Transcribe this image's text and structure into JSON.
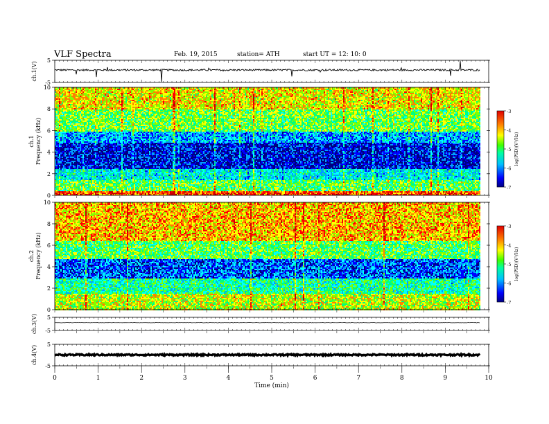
{
  "header": {
    "title": "VLF  Spectra",
    "date": "Feb. 19, 2015",
    "station": "station= ATH",
    "start": "start  UT  =   12: 10: 0"
  },
  "chart_data": [
    {
      "type": "line",
      "panel": "ch1-waveform",
      "ylabel": "ch.1(V)",
      "ylim": [
        -5,
        5
      ],
      "yticks": [
        "5",
        "-5"
      ],
      "xlim": [
        0,
        10
      ],
      "x_end": 9.8,
      "baseline": 0.6,
      "noise": 0.4,
      "spikes": [
        -4.8,
        4.8
      ],
      "line_color": "#000000"
    },
    {
      "type": "heatmap",
      "panel": "ch1-spectrogram",
      "ylabel": "ch.1\nFrequency  (kHz)",
      "ylim": [
        0,
        10
      ],
      "yticks": [
        "0",
        "2",
        "4",
        "6",
        "8",
        "10"
      ],
      "xlim": [
        0,
        10
      ],
      "x_end": 9.8,
      "colorbar": {
        "label": "log(PSD)(V²/Hz)",
        "range": [
          -7,
          -3
        ],
        "ticks": [
          "-3",
          "-4",
          "-5",
          "-6",
          "-7"
        ]
      },
      "profile_note": "logPSD vs frequency band",
      "profile": [
        {
          "f": [
            0,
            0.5
          ],
          "v": -3.8
        },
        {
          "f": [
            0.5,
            1.5
          ],
          "v": -5.0
        },
        {
          "f": [
            1.5,
            2.5
          ],
          "v": -5.6
        },
        {
          "f": [
            2.5,
            5.0
          ],
          "v": -6.5
        },
        {
          "f": [
            5.0,
            6.0
          ],
          "v": -5.9
        },
        {
          "f": [
            6.0,
            8.0
          ],
          "v": -4.9
        },
        {
          "f": [
            8.0,
            10.0
          ],
          "v": -4.4
        }
      ]
    },
    {
      "type": "heatmap",
      "panel": "ch2-spectrogram",
      "ylabel": "ch.2\nFrequency  (kHz)",
      "ylim": [
        0,
        10
      ],
      "yticks": [
        "0",
        "2",
        "4",
        "6",
        "8",
        "10"
      ],
      "xlim": [
        0,
        10
      ],
      "x_end": 9.8,
      "colorbar": {
        "label": "log(PSD)(V²/Hz)",
        "range": [
          -7,
          -3
        ],
        "ticks": [
          "-3",
          "-4",
          "-5",
          "-6",
          "-7"
        ]
      },
      "profile": [
        {
          "f": [
            0,
            1.5
          ],
          "v": -4.6
        },
        {
          "f": [
            1.5,
            3.0
          ],
          "v": -5.3
        },
        {
          "f": [
            3.0,
            4.8
          ],
          "v": -6.2
        },
        {
          "f": [
            4.8,
            6.5
          ],
          "v": -5.0
        },
        {
          "f": [
            6.5,
            10.0
          ],
          "v": -4.2
        }
      ]
    },
    {
      "type": "line",
      "panel": "ch3-waveform",
      "ylabel": "ch.3(V)",
      "ylim": [
        -5,
        5
      ],
      "yticks": [
        "5",
        "-5"
      ],
      "xlim": [
        0,
        10
      ],
      "x_end": 9.8,
      "baseline": 0.9,
      "noise": 0.12,
      "line_color": "#000000"
    },
    {
      "type": "line",
      "panel": "ch4-waveform",
      "ylabel": "ch.4(V)",
      "ylim": [
        -5,
        5
      ],
      "yticks": [
        "5",
        "-5"
      ],
      "xlim": [
        0,
        10
      ],
      "x_end": 9.8,
      "baseline": 0.1,
      "noise": 0.35,
      "line_color": "#000000"
    }
  ],
  "x_axis": {
    "label": "Time  (min)",
    "range": [
      0,
      10
    ],
    "ticks": [
      "0",
      "1",
      "2",
      "3",
      "4",
      "5",
      "6",
      "7",
      "8",
      "9",
      "10"
    ]
  },
  "colors": {
    "colormap": [
      "#000080",
      "#0000ff",
      "#00a0ff",
      "#00ffff",
      "#00ff80",
      "#80ff00",
      "#ffff00",
      "#ff8000",
      "#ff0000",
      "#c80000"
    ]
  }
}
